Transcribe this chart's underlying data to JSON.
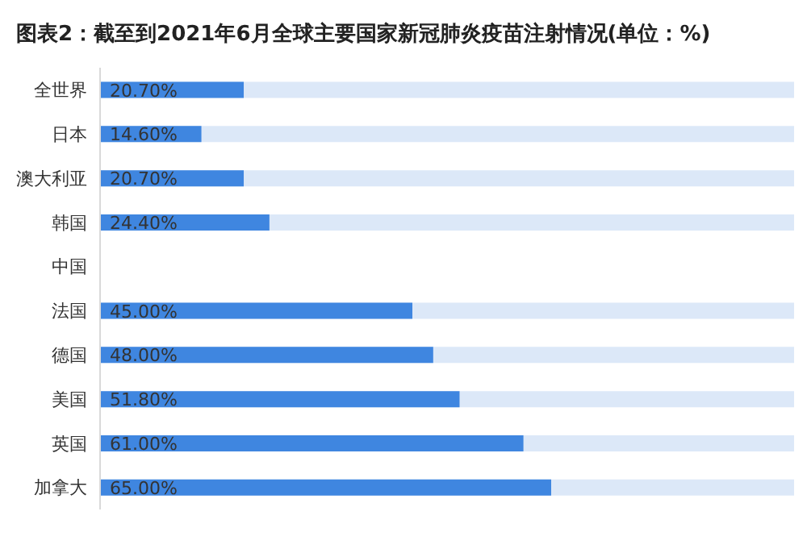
{
  "chart_data": {
    "type": "bar",
    "orientation": "horizontal",
    "title": "图表2：截至到2021年6月全球主要国家新冠肺炎疫苗注射情况(单位：%)",
    "categories": [
      "全世界",
      "日本",
      "澳大利亚",
      "韩国",
      "中国",
      "法国",
      "德国",
      "美国",
      "英国",
      "加拿大"
    ],
    "values": [
      20.7,
      14.6,
      20.7,
      24.4,
      null,
      45,
      48,
      51.8,
      61,
      65
    ],
    "value_labels": [
      "20.70%",
      "14.60%",
      "20.70%",
      "24.40%",
      null,
      "45.00%",
      "48.00%",
      "51.80%",
      "61.00%",
      "65.00%"
    ],
    "color": "#3f86e0",
    "xlim": [
      0,
      100
    ],
    "tick_labels": "y"
  }
}
